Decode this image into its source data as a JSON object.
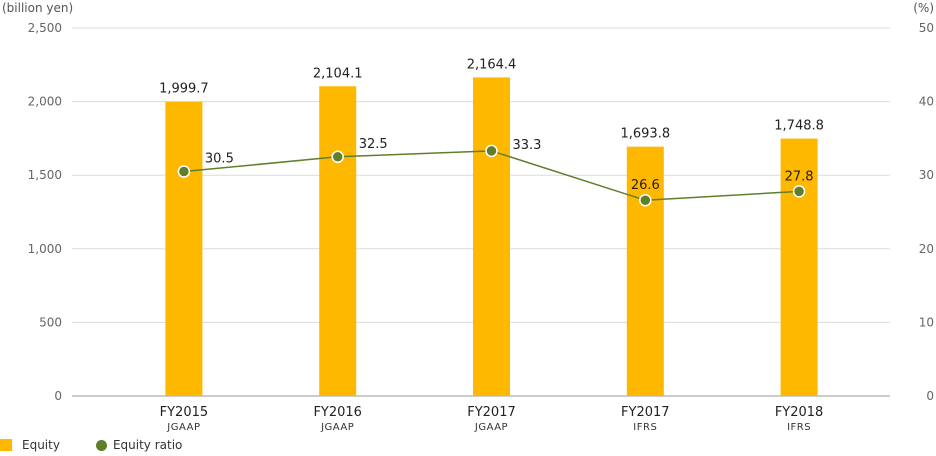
{
  "chart_data": {
    "type": "bar",
    "categories": [
      "FY2015",
      "FY2016",
      "FY2017",
      "FY2017",
      "FY2018"
    ],
    "subcategories": [
      "JGAAP",
      "JGAAP",
      "JGAAP",
      "IFRS",
      "IFRS"
    ],
    "left_axis": {
      "unit": "(billion yen)",
      "ylim": [
        0,
        2500
      ],
      "ticks": [
        0,
        500,
        1000,
        1500,
        2000,
        2500
      ],
      "tick_labels": [
        "0",
        "500",
        "1,000",
        "1,500",
        "2,000",
        "2,500"
      ]
    },
    "right_axis": {
      "unit": "(%)",
      "ylim": [
        0,
        50
      ],
      "ticks": [
        0,
        10,
        20,
        30,
        40,
        50
      ],
      "tick_labels": [
        "0",
        "10",
        "20",
        "30",
        "40",
        "50"
      ]
    },
    "series": [
      {
        "name": "Equity",
        "type": "bar",
        "axis": "left",
        "color": "#FFB800",
        "values": [
          1999.7,
          2104.1,
          2164.4,
          1693.8,
          1748.8
        ],
        "labels": [
          "1,999.7",
          "2,104.1",
          "2,164.4",
          "1,693.8",
          "1,748.8"
        ]
      },
      {
        "name": "Equity ratio",
        "type": "line",
        "axis": "right",
        "color": "#5F7F2A",
        "values": [
          30.5,
          32.5,
          33.3,
          26.6,
          27.8
        ],
        "labels": [
          "30.5",
          "32.5",
          "33.3",
          "26.6",
          "27.8"
        ]
      }
    ],
    "grid": true,
    "legend_position": "bottom-left"
  }
}
